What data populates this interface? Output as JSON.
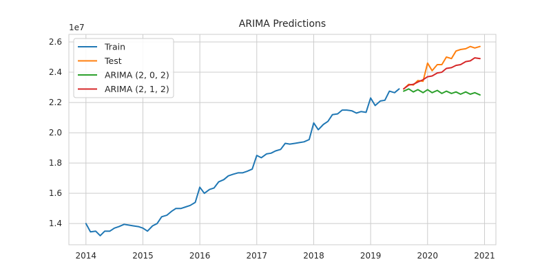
{
  "chart_data": {
    "type": "line",
    "title": "ARIMA Predictions",
    "xlabel": "",
    "ylabel": "",
    "y_offset_label": "1e7",
    "grid": true,
    "legend": "top-left",
    "xlim": [
      2013.7,
      2021.2
    ],
    "ylim": [
      12600000,
      26500000
    ],
    "x_ticks": [
      2014,
      2015,
      2016,
      2017,
      2018,
      2019,
      2020,
      2021
    ],
    "x_tick_labels": [
      "2014",
      "2015",
      "2016",
      "2017",
      "2018",
      "2019",
      "2020",
      "2021"
    ],
    "y_ticks": [
      14000000,
      16000000,
      18000000,
      20000000,
      22000000,
      24000000,
      26000000
    ],
    "y_tick_labels": [
      "1.4",
      "1.6",
      "1.8",
      "2.0",
      "2.2",
      "2.4",
      "2.6"
    ],
    "series": [
      {
        "name": "Train",
        "color": "#1f77b4",
        "x": [
          2014.0,
          2014.08,
          2014.17,
          2014.25,
          2014.33,
          2014.42,
          2014.5,
          2014.58,
          2014.67,
          2014.75,
          2014.83,
          2014.92,
          2015.0,
          2015.08,
          2015.17,
          2015.25,
          2015.33,
          2015.42,
          2015.5,
          2015.58,
          2015.67,
          2015.75,
          2015.83,
          2015.92,
          2016.0,
          2016.08,
          2016.17,
          2016.25,
          2016.33,
          2016.42,
          2016.5,
          2016.58,
          2016.67,
          2016.75,
          2016.83,
          2016.92,
          2017.0,
          2017.08,
          2017.17,
          2017.25,
          2017.33,
          2017.42,
          2017.5,
          2017.58,
          2017.67,
          2017.75,
          2017.83,
          2017.92,
          2018.0,
          2018.08,
          2018.17,
          2018.25,
          2018.33,
          2018.42,
          2018.5,
          2018.58,
          2018.67,
          2018.75,
          2018.83,
          2018.92,
          2019.0,
          2019.08,
          2019.17,
          2019.25,
          2019.33,
          2019.42,
          2019.5
        ],
        "y": [
          14000000,
          13450000,
          13500000,
          13200000,
          13500000,
          13500000,
          13700000,
          13800000,
          13950000,
          13900000,
          13850000,
          13800000,
          13700000,
          13500000,
          13850000,
          14000000,
          14450000,
          14550000,
          14800000,
          15000000,
          15000000,
          15100000,
          15200000,
          15400000,
          16400000,
          16000000,
          16250000,
          16350000,
          16750000,
          16900000,
          17150000,
          17250000,
          17350000,
          17350000,
          17450000,
          17600000,
          18500000,
          18350000,
          18600000,
          18650000,
          18800000,
          18900000,
          19300000,
          19250000,
          19300000,
          19350000,
          19400000,
          19550000,
          20650000,
          20200000,
          20550000,
          20750000,
          21200000,
          21250000,
          21500000,
          21500000,
          21450000,
          21300000,
          21400000,
          21350000,
          22300000,
          21800000,
          22100000,
          22150000,
          22750000,
          22650000,
          22900000
        ]
      },
      {
        "name": "Test",
        "color": "#ff7f0e",
        "x": [
          2019.58,
          2019.67,
          2019.75,
          2019.83,
          2019.92,
          2020.0,
          2020.08,
          2020.17,
          2020.25,
          2020.33,
          2020.42,
          2020.5,
          2020.58,
          2020.67,
          2020.75,
          2020.83,
          2020.92
        ],
        "y": [
          22900000,
          23200000,
          23150000,
          23450000,
          23400000,
          24600000,
          24100000,
          24500000,
          24500000,
          25000000,
          24900000,
          25400000,
          25500000,
          25550000,
          25700000,
          25600000,
          25700000
        ]
      },
      {
        "name": "ARIMA (2, 0, 2)",
        "color": "#2ca02c",
        "x": [
          2019.58,
          2019.67,
          2019.75,
          2019.83,
          2019.92,
          2020.0,
          2020.08,
          2020.17,
          2020.25,
          2020.33,
          2020.42,
          2020.5,
          2020.58,
          2020.67,
          2020.75,
          2020.83,
          2020.92
        ],
        "y": [
          22750000,
          22900000,
          22700000,
          22850000,
          22650000,
          22850000,
          22650000,
          22800000,
          22600000,
          22750000,
          22600000,
          22700000,
          22550000,
          22700000,
          22550000,
          22650000,
          22500000
        ]
      },
      {
        "name": "ARIMA (2, 1, 2)",
        "color": "#d62728",
        "x": [
          2019.58,
          2019.67,
          2019.75,
          2019.83,
          2019.92,
          2020.0,
          2020.08,
          2020.17,
          2020.25,
          2020.33,
          2020.42,
          2020.5,
          2020.58,
          2020.67,
          2020.75,
          2020.83,
          2020.92
        ],
        "y": [
          22900000,
          23150000,
          23200000,
          23350000,
          23500000,
          23700000,
          23750000,
          23950000,
          24000000,
          24250000,
          24300000,
          24450000,
          24500000,
          24700000,
          24750000,
          24950000,
          24900000
        ]
      }
    ]
  }
}
